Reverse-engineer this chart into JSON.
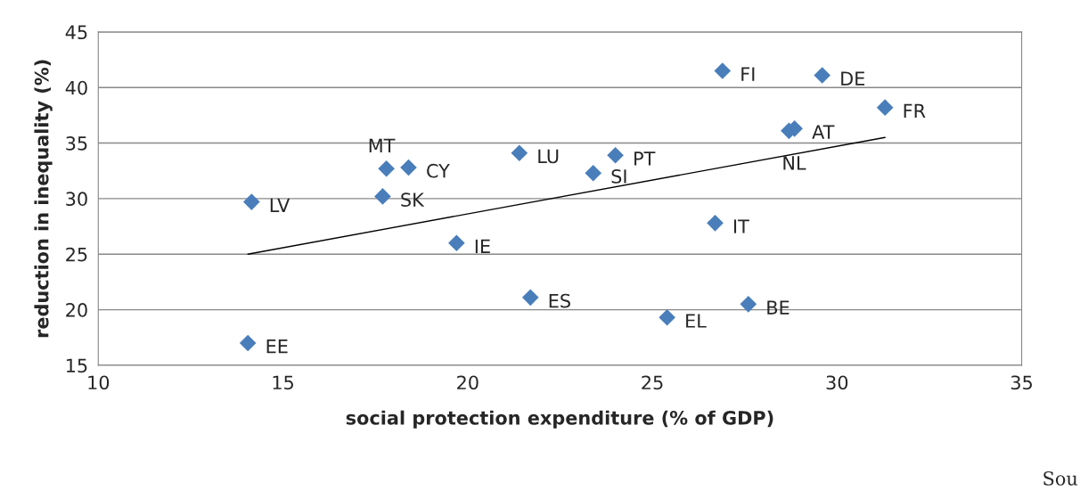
{
  "chart_data": {
    "type": "scatter",
    "xlabel": "social protection expenditure (% of GDP)",
    "ylabel": "reduction in inequality (%)",
    "x": [
      14.05,
      14.15,
      17.8,
      17.7,
      18.4,
      19.7,
      21.4,
      21.7,
      23.4,
      24.0,
      25.4,
      26.7,
      26.9,
      27.6,
      28.7,
      28.85,
      29.6,
      31.3
    ],
    "series": [
      {
        "color": "#4a7ebb",
        "marker": "diamond",
        "values": [
          17.0,
          29.7,
          32.7,
          30.2,
          32.8,
          26.0,
          34.1,
          21.1,
          32.3,
          33.9,
          19.3,
          27.8,
          41.5,
          20.5,
          36.1,
          36.3,
          41.1,
          38.2
        ]
      },
      {
        "type": "line",
        "color": "#000000",
        "x": [
          14.05,
          31.3
        ],
        "values": [
          25.0,
          35.5
        ],
        "marker": "none"
      }
    ],
    "annotations": [
      {
        "text": "EE",
        "x": 14.05,
        "y": 17.0
      },
      {
        "text": "LV",
        "x": 14.15,
        "y": 29.7
      },
      {
        "text": "MT",
        "x": 17.8,
        "y": 32.7
      },
      {
        "text": "SK",
        "x": 17.7,
        "y": 30.2
      },
      {
        "text": "CY",
        "x": 18.4,
        "y": 32.8
      },
      {
        "text": "IE",
        "x": 19.7,
        "y": 26.0
      },
      {
        "text": "LU",
        "x": 21.4,
        "y": 34.1
      },
      {
        "text": "ES",
        "x": 21.7,
        "y": 21.1
      },
      {
        "text": "SI",
        "x": 23.4,
        "y": 32.3
      },
      {
        "text": "PT",
        "x": 24.0,
        "y": 33.9
      },
      {
        "text": "EL",
        "x": 25.4,
        "y": 19.3
      },
      {
        "text": "IT",
        "x": 26.7,
        "y": 27.8
      },
      {
        "text": "FI",
        "x": 26.9,
        "y": 41.5
      },
      {
        "text": "BE",
        "x": 27.6,
        "y": 20.5
      },
      {
        "text": "NL",
        "x": 28.7,
        "y": 36.1
      },
      {
        "text": "AT",
        "x": 28.85,
        "y": 36.3
      },
      {
        "text": "DE",
        "x": 29.6,
        "y": 41.1
      },
      {
        "text": "FR",
        "x": 31.3,
        "y": 38.2
      },
      "Sou"
    ],
    "xlim": [
      10,
      35
    ],
    "xticks": [
      10,
      15,
      20,
      25,
      30,
      35
    ],
    "ylim": [
      15,
      45
    ],
    "yticks": [
      15,
      20,
      25,
      30,
      35,
      40,
      45
    ],
    "grid": "y",
    "legend": false
  }
}
